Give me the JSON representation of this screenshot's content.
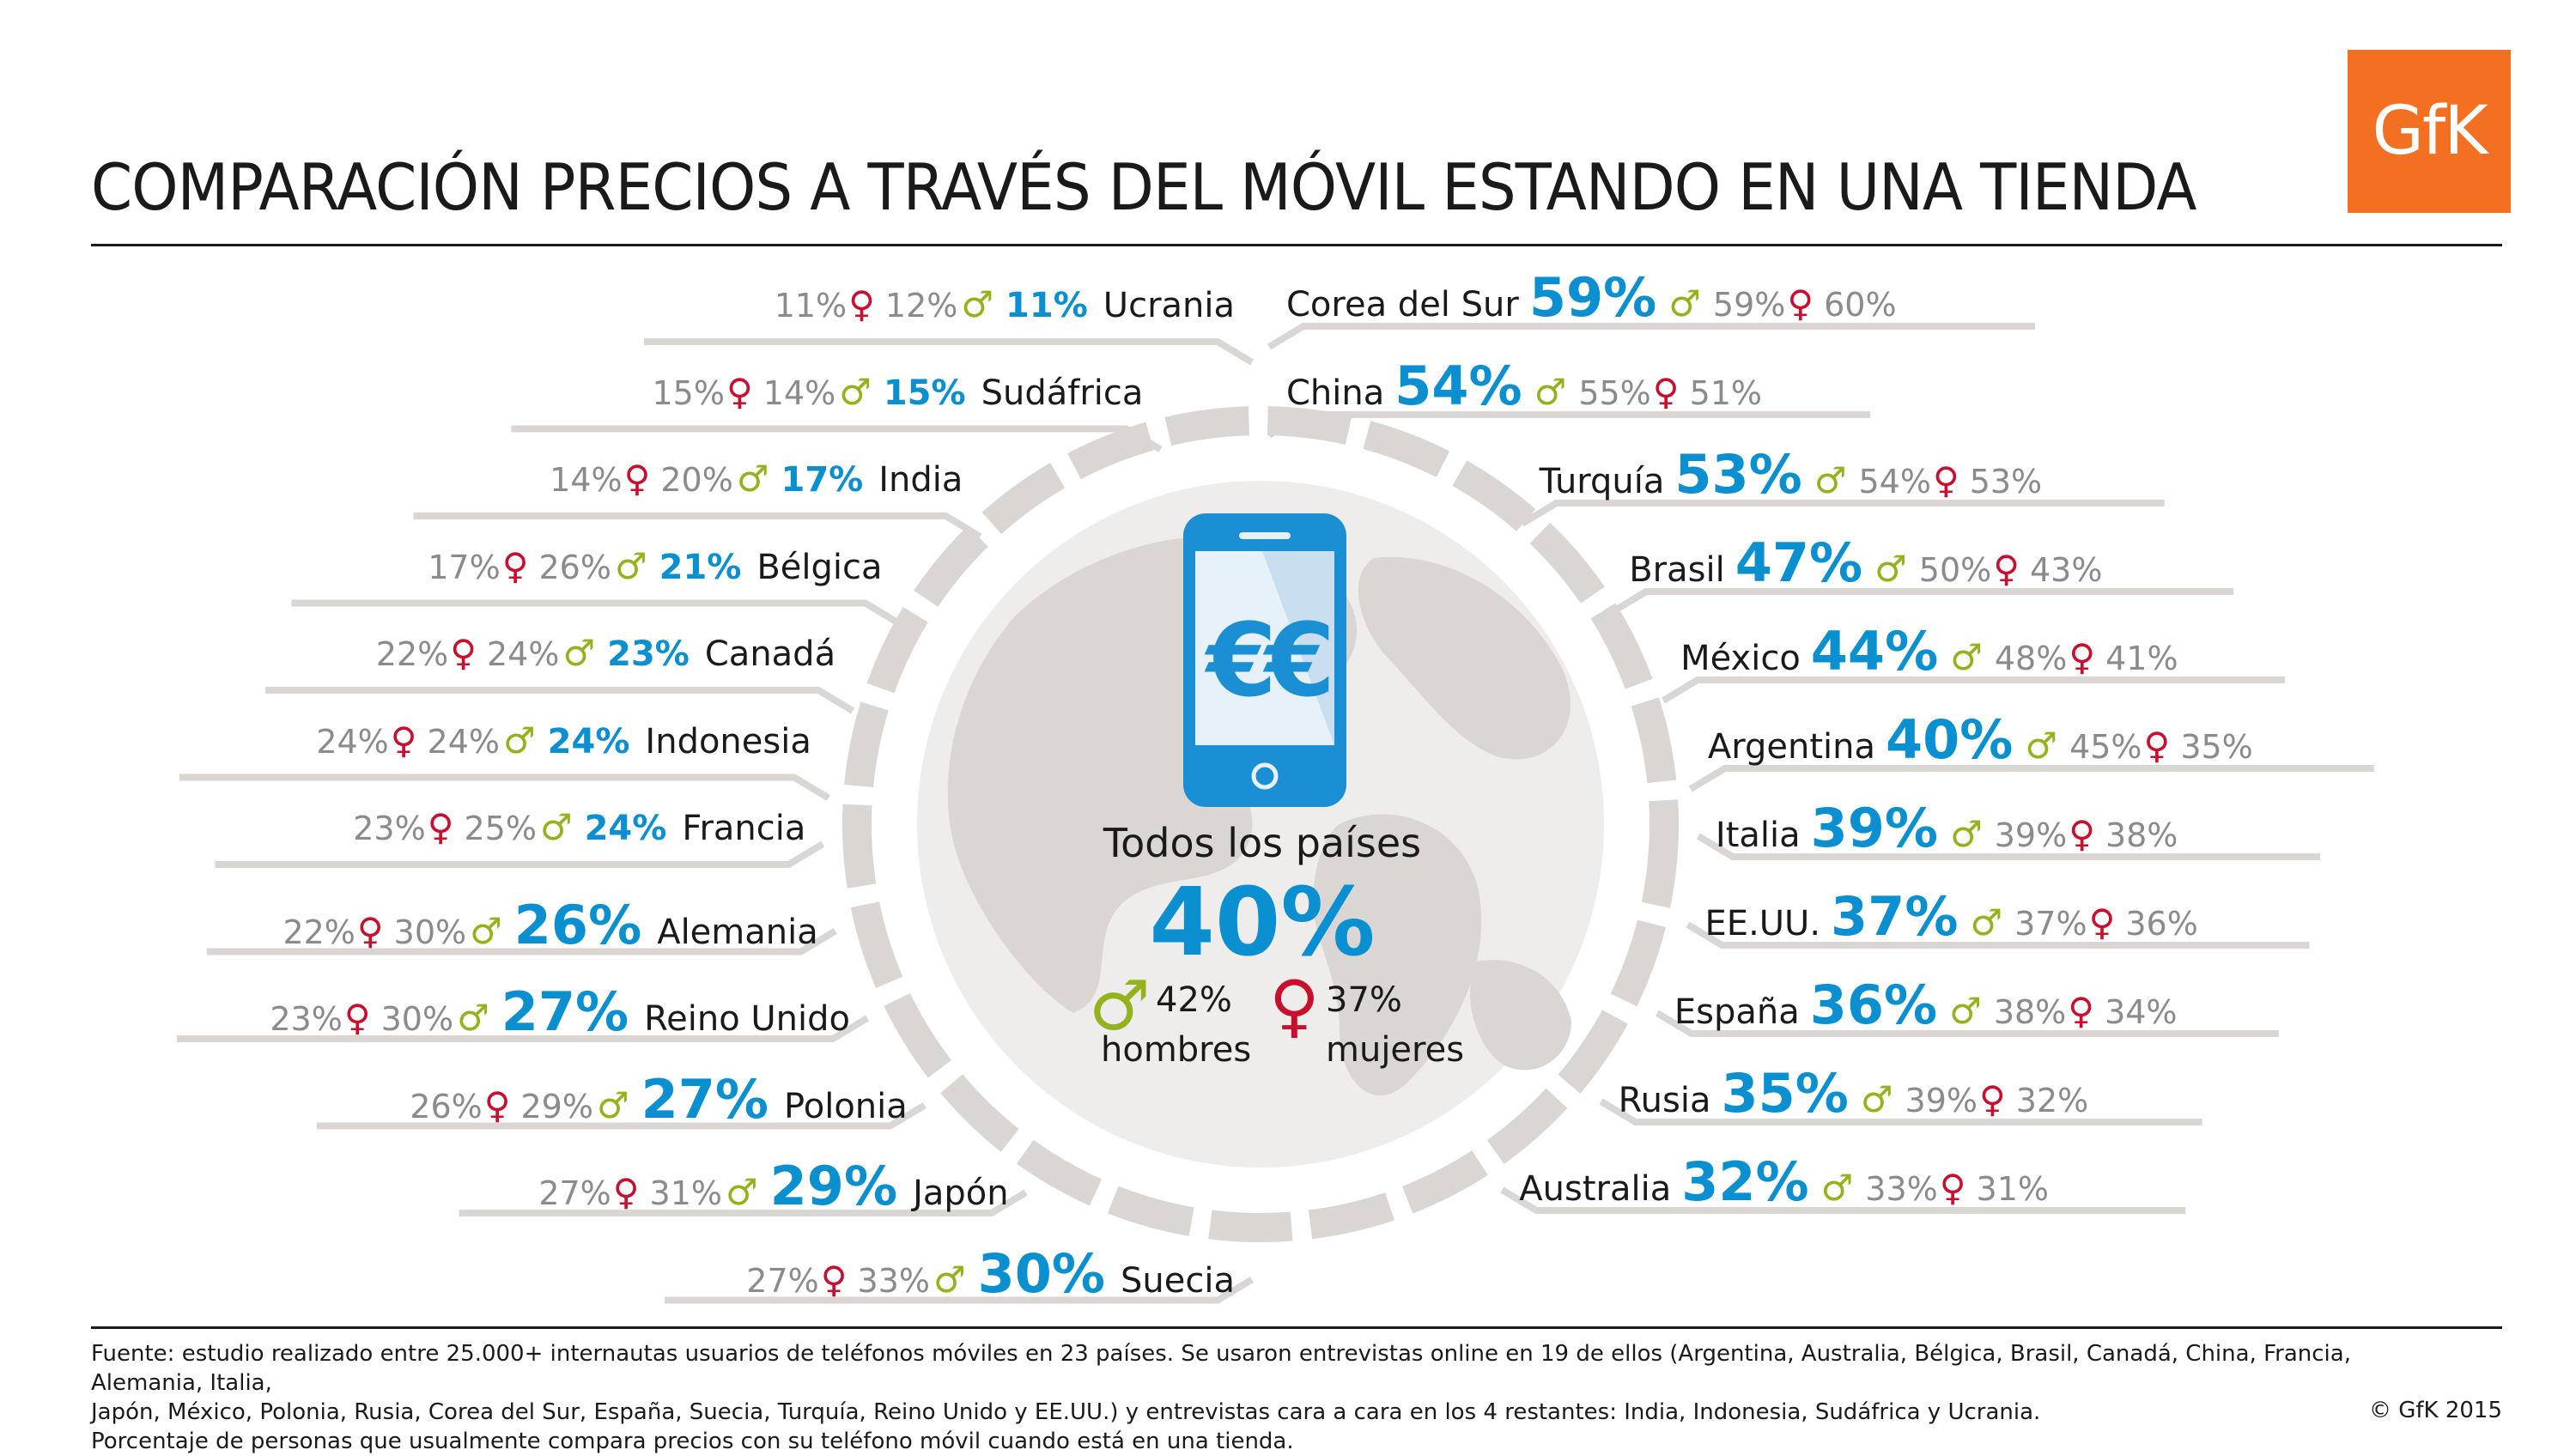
{
  "title": "COMPARACIÓN PRECIOS A TRAVÉS DEL MÓVIL ESTANDO EN UNA TIENDA",
  "logo_text": "GfK",
  "center": {
    "label": "Todos los países",
    "total": "40%",
    "male_pct": "42%",
    "male_label": "hombres",
    "female_pct": "37%",
    "female_label": "mujeres",
    "phone_symbol": "€€"
  },
  "symbols": {
    "male": "♂",
    "female": "♀"
  },
  "colors": {
    "total": "#0a8fd0",
    "male": "#94b21c",
    "female": "#c8102e",
    "gray": "#8b8b8b",
    "globe": "#d9d6d4",
    "logo": "#f36f21"
  },
  "chart_data": {
    "type": "table",
    "columns": [
      "country",
      "total",
      "male",
      "female"
    ],
    "left_rows": [
      {
        "country": "Ucrania",
        "total": "11%",
        "male": "12%",
        "female": "11%"
      },
      {
        "country": "Sudáfrica",
        "total": "15%",
        "male": "14%",
        "female": "15%"
      },
      {
        "country": "India",
        "total": "17%",
        "male": "20%",
        "female": "14%"
      },
      {
        "country": "Bélgica",
        "total": "21%",
        "male": "26%",
        "female": "17%"
      },
      {
        "country": "Canadá",
        "total": "23%",
        "male": "24%",
        "female": "22%"
      },
      {
        "country": "Indonesia",
        "total": "24%",
        "male": "24%",
        "female": "24%"
      },
      {
        "country": "Francia",
        "total": "24%",
        "male": "25%",
        "female": "23%"
      },
      {
        "country": "Alemania",
        "total": "26%",
        "male": "30%",
        "female": "22%"
      },
      {
        "country": "Reino Unido",
        "total": "27%",
        "male": "30%",
        "female": "23%"
      },
      {
        "country": "Polonia",
        "total": "27%",
        "male": "29%",
        "female": "26%"
      },
      {
        "country": "Japón",
        "total": "29%",
        "male": "31%",
        "female": "27%"
      },
      {
        "country": "Suecia",
        "total": "30%",
        "male": "33%",
        "female": "27%"
      }
    ],
    "right_rows": [
      {
        "country": "Corea del Sur",
        "total": "59%",
        "male": "59%",
        "female": "60%"
      },
      {
        "country": "China",
        "total": "54%",
        "male": "55%",
        "female": "51%"
      },
      {
        "country": "Turquía",
        "total": "53%",
        "male": "54%",
        "female": "53%"
      },
      {
        "country": "Brasil",
        "total": "47%",
        "male": "50%",
        "female": "43%"
      },
      {
        "country": "México",
        "total": "44%",
        "male": "48%",
        "female": "41%"
      },
      {
        "country": "Argentina",
        "total": "40%",
        "male": "45%",
        "female": "35%"
      },
      {
        "country": "Italia",
        "total": "39%",
        "male": "39%",
        "female": "38%"
      },
      {
        "country": "EE.UU.",
        "total": "37%",
        "male": "37%",
        "female": "36%"
      },
      {
        "country": "España",
        "total": "36%",
        "male": "38%",
        "female": "34%"
      },
      {
        "country": "Rusia",
        "total": "35%",
        "male": "39%",
        "female": "32%"
      },
      {
        "country": "Australia",
        "total": "32%",
        "male": "33%",
        "female": "31%"
      }
    ]
  },
  "footnote": {
    "line1": "Fuente: estudio realizado entre 25.000+ internautas usuarios de teléfonos móviles en 23 países. Se usaron entrevistas online en 19 de ellos (Argentina, Australia, Bélgica, Brasil, Canadá, China, Francia, Alemania, Italia,",
    "line2": "Japón, México, Polonia, Rusia, Corea del Sur, España, Suecia, Turquía, Reino Unido y EE.UU.) y entrevistas cara a cara en los 4 restantes: India, Indonesia, Sudáfrica y Ucrania.",
    "line3": "Porcentaje de personas que usualmente compara precios con su teléfono móvil cuando está en una tienda.",
    "copyright": "© GfK 2015"
  }
}
